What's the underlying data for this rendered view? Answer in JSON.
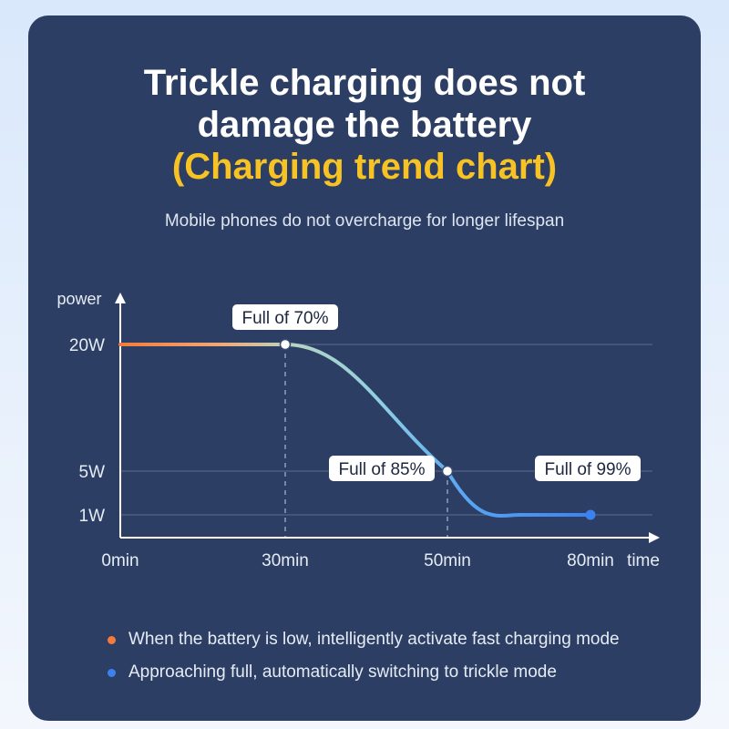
{
  "title": {
    "line1": "Trickle charging does not",
    "line2": "damage the battery",
    "line3": "(Charging trend chart)"
  },
  "subtitle": "Mobile phones do not overcharge for longer lifespan",
  "colors": {
    "background": "#2c3e63",
    "highlight": "#f7c224",
    "fast_charge": "#f57b3a",
    "trickle": "#3b82f0",
    "curve_mid": "#9fd2dc"
  },
  "chart_data": {
    "type": "line",
    "xlabel": "time",
    "ylabel": "power",
    "x_ticks": [
      "0min",
      "30min",
      "50min",
      "80min"
    ],
    "y_ticks": [
      "20W",
      "5W",
      "1W"
    ],
    "series": [
      {
        "points": [
          {
            "x": 0,
            "y": 20
          },
          {
            "x": 30,
            "y": 20
          },
          {
            "x": 50,
            "y": 5
          },
          {
            "x": 80,
            "y": 1
          }
        ]
      }
    ],
    "annotations": [
      {
        "x": 30,
        "y": 20,
        "text": "Full of 70%"
      },
      {
        "x": 50,
        "y": 5,
        "text": "Full of 85%"
      },
      {
        "x": 80,
        "y": 1,
        "text": "Full of 99%"
      }
    ],
    "grid": true
  },
  "legend": [
    {
      "text": "When the battery is low, intelligently activate fast charging mode",
      "color": "#f57b3a"
    },
    {
      "text": "Approaching full, automatically switching to trickle mode",
      "color": "#3b82f0"
    }
  ]
}
